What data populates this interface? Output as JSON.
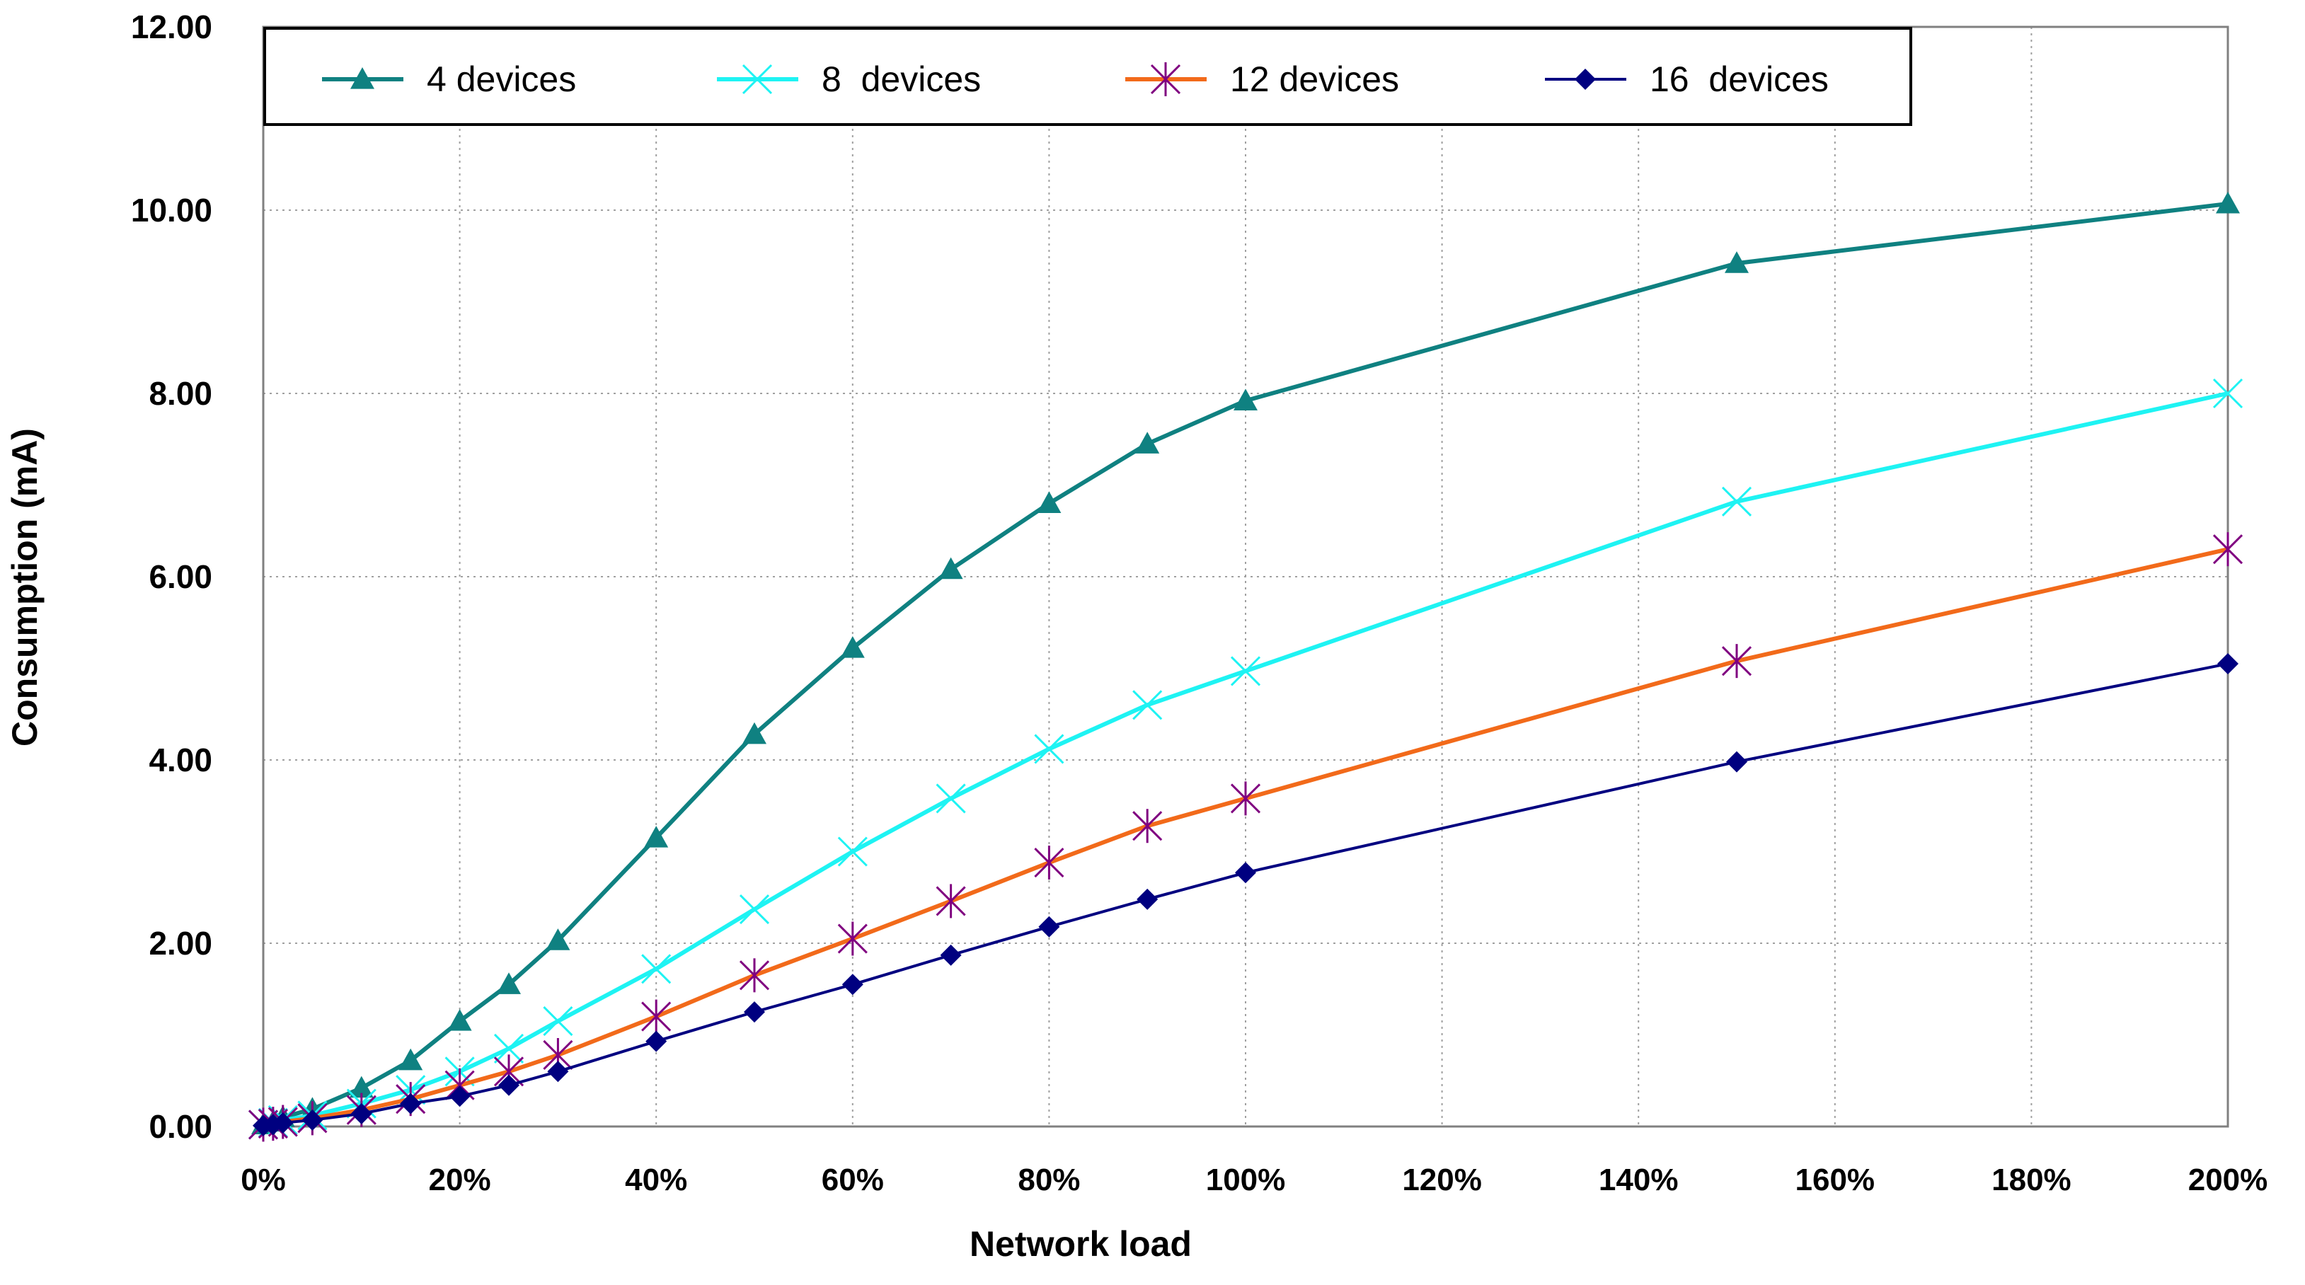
{
  "chart_data": {
    "type": "line",
    "title": "",
    "xlabel": "Network load",
    "ylabel": "Consumption (mA)",
    "x": [
      0,
      1,
      2,
      5,
      10,
      15,
      20,
      25,
      30,
      40,
      50,
      60,
      70,
      80,
      90,
      100,
      150,
      200
    ],
    "xlim": [
      0,
      200
    ],
    "ylim": [
      0,
      12
    ],
    "x_ticks": [
      0,
      20,
      40,
      60,
      80,
      100,
      120,
      140,
      160,
      180,
      200
    ],
    "x_tick_labels": [
      "0%",
      "20%",
      "40%",
      "60%",
      "80%",
      "100%",
      "120%",
      "140%",
      "160%",
      "180%",
      "200%"
    ],
    "y_ticks": [
      0,
      2,
      4,
      6,
      8,
      10,
      12
    ],
    "y_tick_labels": [
      "0.00",
      "2.00",
      "4.00",
      "6.00",
      "8.00",
      "10.00",
      "12.00"
    ],
    "grid": true,
    "legend_position": "top",
    "series": [
      {
        "name": "4 devices",
        "color": "#0f8181",
        "marker": "triangle",
        "values": [
          0.02,
          0.05,
          0.1,
          0.19,
          0.42,
          0.72,
          1.15,
          1.55,
          2.03,
          3.15,
          4.28,
          5.22,
          6.08,
          6.8,
          7.45,
          7.92,
          9.42,
          10.07
        ]
      },
      {
        "name": "8  devices",
        "color": "#1ef3f3",
        "marker": "x",
        "values": [
          0.02,
          0.04,
          0.07,
          0.12,
          0.25,
          0.4,
          0.6,
          0.85,
          1.15,
          1.72,
          2.37,
          3.0,
          3.58,
          4.12,
          4.6,
          4.97,
          6.82,
          8.0
        ]
      },
      {
        "name": "12 devices",
        "color": "#f26a1a",
        "marker_color": "#800080",
        "marker": "star",
        "values": [
          0.02,
          0.03,
          0.05,
          0.09,
          0.18,
          0.3,
          0.45,
          0.6,
          0.78,
          1.2,
          1.65,
          2.05,
          2.46,
          2.88,
          3.28,
          3.58,
          5.08,
          6.3
        ]
      },
      {
        "name": "16  devices",
        "color": "#000080",
        "marker": "diamond",
        "values": [
          0.01,
          0.02,
          0.04,
          0.07,
          0.14,
          0.25,
          0.33,
          0.45,
          0.6,
          0.93,
          1.25,
          1.55,
          1.87,
          2.18,
          2.48,
          2.77,
          3.98,
          5.05
        ]
      }
    ]
  }
}
